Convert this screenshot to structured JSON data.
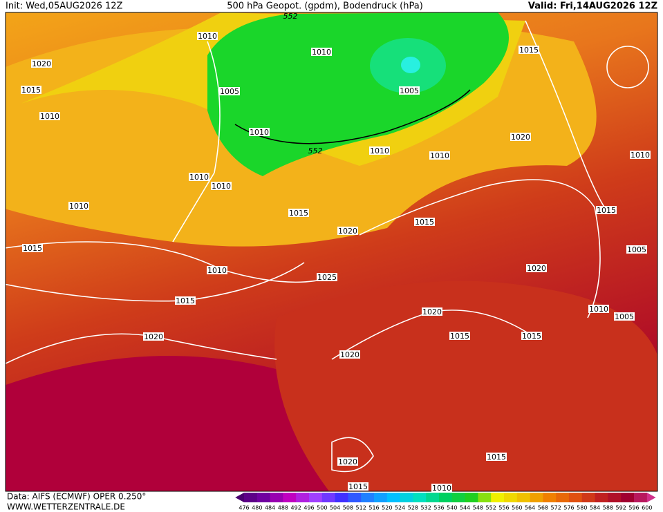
{
  "header": {
    "init": "Init: Wed,05AUG2026 12Z",
    "title": "500 hPa Geopot. (gpdm), Bodendruck (hPa)",
    "valid": "Valid: Fri,14AUG2026 12Z"
  },
  "map": {
    "isobar_labels": [
      "1010",
      "1020",
      "1015",
      "1010",
      "1005",
      "1010",
      "1005",
      "1015",
      "1010",
      "1010",
      "1010",
      "1010",
      "1010",
      "1020",
      "1010",
      "1010",
      "1015",
      "1020",
      "1015",
      "1015",
      "1015",
      "1010",
      "1025",
      "1020",
      "1005",
      "1015",
      "1020",
      "1010",
      "1005",
      "1020",
      "1015",
      "1015",
      "1020",
      "1020",
      "1015",
      "1015",
      "1010"
    ],
    "geopotential_labels": [
      "552",
      "552"
    ]
  },
  "colorbar": {
    "labels": [
      476,
      480,
      484,
      488,
      492,
      496,
      500,
      504,
      508,
      512,
      516,
      520,
      524,
      528,
      532,
      536,
      540,
      544,
      548,
      552,
      556,
      560,
      564,
      568,
      572,
      576,
      580,
      584,
      588,
      592,
      596,
      600
    ]
  },
  "footer": {
    "source": "Data: AIFS (ECMWF) OPER 0.250°",
    "site": "WWW.WETTERZENTRALE.DE"
  }
}
